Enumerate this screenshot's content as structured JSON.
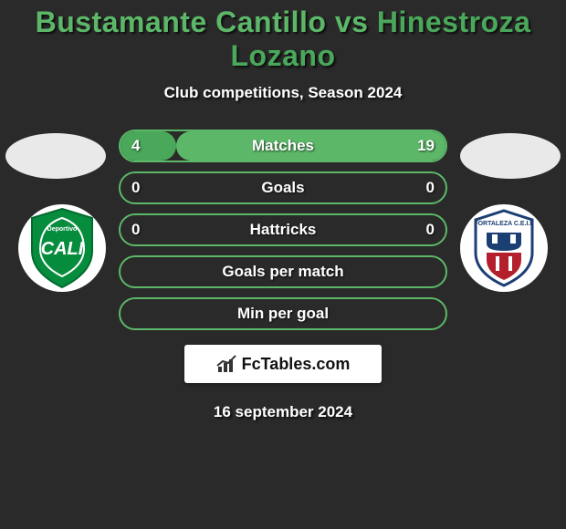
{
  "title": {
    "player1": "Bustamante Cantillo",
    "vs": " vs ",
    "player2": "Hinestroza Lozano",
    "color1": "#5cb868",
    "color2": "#4aa85a"
  },
  "subtitle": "Club competitions, Season 2024",
  "avatars": {
    "left_bg": "#e9e9e9",
    "right_bg": "#e9e9e9"
  },
  "clubs": {
    "left": {
      "name": "Deportivo Cali",
      "shield_color": "#068c3d",
      "accent": "#ffffff"
    },
    "right": {
      "name": "Fortaleza CEIF",
      "shield_color": "#ffffff",
      "accent_top": "#1c3f73",
      "accent_bottom": "#b3202c"
    }
  },
  "stats": {
    "border_color": "#5cb868",
    "fill_left_color": "#4aa85a",
    "fill_right_color": "#5cb868",
    "rows": [
      {
        "label": "Matches",
        "left": "4",
        "right": "19",
        "left_pct": 17,
        "right_pct": 83
      },
      {
        "label": "Goals",
        "left": "0",
        "right": "0",
        "left_pct": 0,
        "right_pct": 0
      },
      {
        "label": "Hattricks",
        "left": "0",
        "right": "0",
        "left_pct": 0,
        "right_pct": 0
      },
      {
        "label": "Goals per match",
        "left": "",
        "right": "",
        "left_pct": 0,
        "right_pct": 0
      },
      {
        "label": "Min per goal",
        "left": "",
        "right": "",
        "left_pct": 0,
        "right_pct": 0
      }
    ]
  },
  "brand": {
    "text": "FcTables.com",
    "icon_color": "#333333"
  },
  "date": "16 september 2024",
  "background": "#2a2a2a"
}
